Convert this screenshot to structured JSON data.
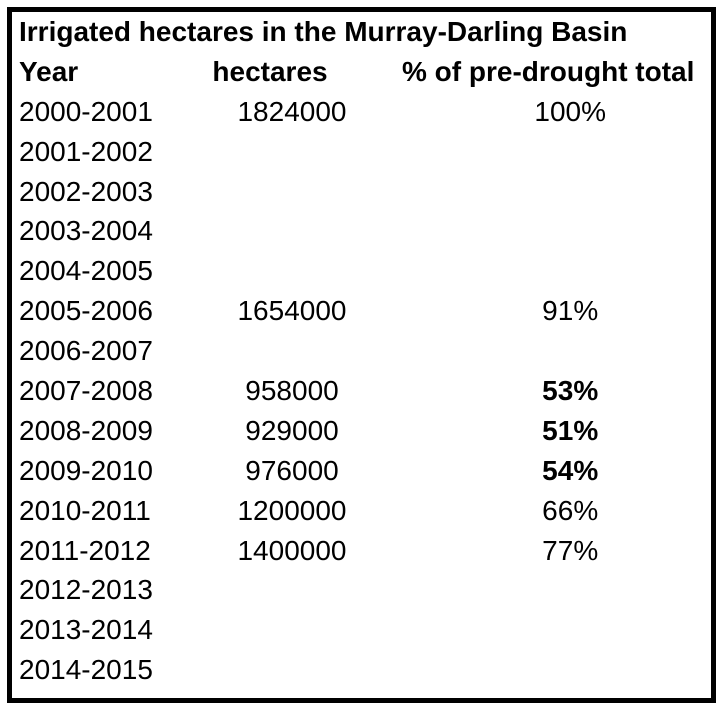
{
  "colors": {
    "border": "#000000",
    "text": "#000000",
    "background": "#ffffff"
  },
  "table": {
    "title": "Irrigated hectares in the Murray-Darling Basin",
    "columns": [
      "Year",
      "hectares",
      "% of pre-drought total"
    ],
    "rows": [
      {
        "year": "2000-2001",
        "hectares": "1824000",
        "percent": "100%",
        "bold": false
      },
      {
        "year": "2001-2002",
        "hectares": "",
        "percent": "",
        "bold": false
      },
      {
        "year": "2002-2003",
        "hectares": "",
        "percent": "",
        "bold": false
      },
      {
        "year": "2003-2004",
        "hectares": "",
        "percent": "",
        "bold": false
      },
      {
        "year": "2004-2005",
        "hectares": "",
        "percent": "",
        "bold": false
      },
      {
        "year": "2005-2006",
        "hectares": "1654000",
        "percent": "91%",
        "bold": false
      },
      {
        "year": "2006-2007",
        "hectares": "",
        "percent": "",
        "bold": false
      },
      {
        "year": "2007-2008",
        "hectares": "958000",
        "percent": "53%",
        "bold": true
      },
      {
        "year": "2008-2009",
        "hectares": "929000",
        "percent": "51%",
        "bold": true
      },
      {
        "year": "2009-2010",
        "hectares": "976000",
        "percent": "54%",
        "bold": true
      },
      {
        "year": "2010-2011",
        "hectares": "1200000",
        "percent": "66%",
        "bold": false
      },
      {
        "year": "2011-2012",
        "hectares": "1400000",
        "percent": "77%",
        "bold": false
      },
      {
        "year": "2012-2013",
        "hectares": "",
        "percent": "",
        "bold": false
      },
      {
        "year": "2013-2014",
        "hectares": "",
        "percent": "",
        "bold": false
      },
      {
        "year": "2014-2015",
        "hectares": "",
        "percent": "",
        "bold": false
      }
    ]
  },
  "chart_data": {
    "type": "table",
    "title": "Irrigated hectares in the Murray-Darling Basin",
    "columns": [
      "Year",
      "hectares",
      "% of pre-drought total"
    ],
    "categories": [
      "2000-2001",
      "2001-2002",
      "2002-2003",
      "2003-2004",
      "2004-2005",
      "2005-2006",
      "2006-2007",
      "2007-2008",
      "2008-2009",
      "2009-2010",
      "2010-2011",
      "2011-2012",
      "2012-2013",
      "2013-2014",
      "2014-2015"
    ],
    "series": [
      {
        "name": "hectares",
        "values": [
          1824000,
          null,
          null,
          null,
          null,
          1654000,
          null,
          958000,
          929000,
          976000,
          1200000,
          1400000,
          null,
          null,
          null
        ]
      },
      {
        "name": "% of pre-drought total",
        "values": [
          100,
          null,
          null,
          null,
          null,
          91,
          null,
          53,
          51,
          54,
          66,
          77,
          null,
          null,
          null
        ]
      }
    ],
    "emphasized_percent_rows": [
      "2007-2008",
      "2008-2009",
      "2009-2010"
    ]
  }
}
